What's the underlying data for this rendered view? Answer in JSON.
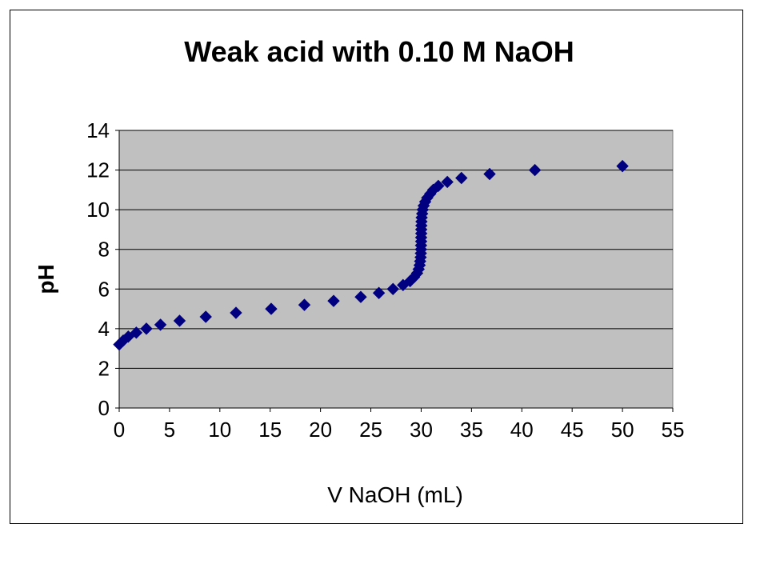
{
  "chart_data": {
    "type": "scatter",
    "title": "Weak acid with 0.10 M NaOH",
    "xlabel": "V NaOH (mL)",
    "ylabel": "pH",
    "xlim": [
      0,
      55
    ],
    "ylim": [
      0,
      14
    ],
    "xticks": [
      0,
      5,
      10,
      15,
      20,
      25,
      30,
      35,
      40,
      45,
      50,
      55
    ],
    "yticks": [
      0,
      2,
      4,
      6,
      8,
      10,
      12,
      14
    ],
    "grid": "horizontal major gridlines",
    "legend": "none",
    "marker": "diamond",
    "colors": {
      "plot_bg": "#c0c0c0",
      "marker": "#000080",
      "grid": "#000000"
    },
    "series": [
      {
        "x": [
          0,
          0.4,
          0.9,
          1.7,
          2.7,
          4.1,
          6.0,
          8.6,
          11.6,
          15.1,
          18.4,
          21.3,
          24.0,
          25.8,
          27.2,
          28.2,
          28.9,
          29.3,
          29.6,
          29.75,
          29.85,
          29.9,
          29.95,
          29.97,
          29.98,
          29.99,
          30.0,
          30.0,
          30.01,
          30.01,
          30.02,
          30.03,
          30.05,
          30.1,
          30.15,
          30.25,
          30.4,
          30.6,
          30.9,
          31.2,
          31.7,
          32.6,
          34.0,
          36.8,
          41.3,
          50.0
        ],
        "y": [
          3.2,
          3.4,
          3.6,
          3.8,
          4.0,
          4.2,
          4.4,
          4.6,
          4.8,
          5.0,
          5.2,
          5.4,
          5.6,
          5.8,
          6.0,
          6.2,
          6.4,
          6.6,
          6.8,
          7.0,
          7.2,
          7.4,
          7.6,
          7.8,
          8.0,
          8.2,
          8.4,
          8.6,
          8.8,
          9.0,
          9.2,
          9.4,
          9.6,
          9.8,
          10.0,
          10.2,
          10.4,
          10.6,
          10.8,
          11.0,
          11.2,
          11.4,
          11.6,
          11.8,
          12.0,
          12.2
        ]
      }
    ]
  }
}
